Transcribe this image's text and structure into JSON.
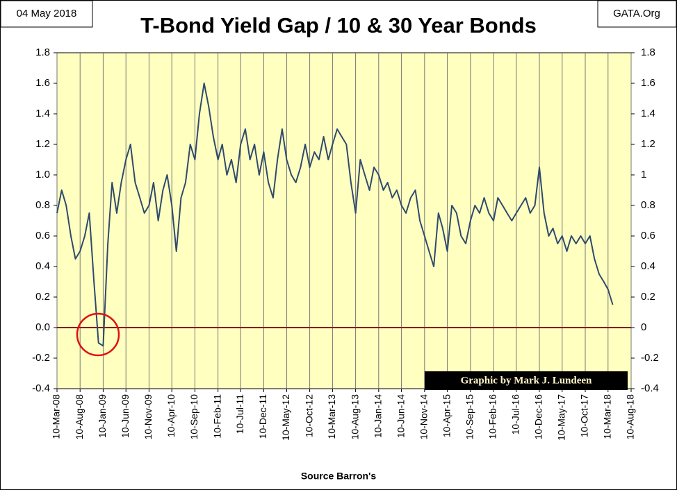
{
  "chart_data": {
    "type": "line",
    "title": "T-Bond Yield Gap / 10 & 30 Year Bonds",
    "date_label": "04 May 2018",
    "source_site": "GATA.Org",
    "credit": "Graphic by Mark J. Lundeen",
    "xlabel": "Source Barron's",
    "x": [
      "2008-03-10",
      "2008-04-10",
      "2008-05-10",
      "2008-06-10",
      "2008-07-10",
      "2008-08-10",
      "2008-09-10",
      "2008-10-10",
      "2008-11-10",
      "2008-12-10",
      "2009-01-10",
      "2009-02-10",
      "2009-03-10",
      "2009-04-10",
      "2009-05-10",
      "2009-06-10",
      "2009-07-10",
      "2009-08-10",
      "2009-09-10",
      "2009-10-10",
      "2009-11-10",
      "2009-12-10",
      "2010-01-10",
      "2010-02-10",
      "2010-03-10",
      "2010-04-10",
      "2010-05-10",
      "2010-06-10",
      "2010-07-10",
      "2010-08-10",
      "2010-09-10",
      "2010-10-10",
      "2010-11-10",
      "2010-12-10",
      "2011-01-10",
      "2011-02-10",
      "2011-03-10",
      "2011-04-10",
      "2011-05-10",
      "2011-06-10",
      "2011-07-10",
      "2011-08-10",
      "2011-09-10",
      "2011-10-10",
      "2011-11-10",
      "2011-12-10",
      "2012-01-10",
      "2012-02-10",
      "2012-03-10",
      "2012-04-10",
      "2012-05-10",
      "2012-06-10",
      "2012-07-10",
      "2012-08-10",
      "2012-09-10",
      "2012-10-10",
      "2012-11-10",
      "2012-12-10",
      "2013-01-10",
      "2013-02-10",
      "2013-03-10",
      "2013-04-10",
      "2013-05-10",
      "2013-06-10",
      "2013-07-10",
      "2013-08-10",
      "2013-09-10",
      "2013-10-10",
      "2013-11-10",
      "2013-12-10",
      "2014-01-10",
      "2014-02-10",
      "2014-03-10",
      "2014-04-10",
      "2014-05-10",
      "2014-06-10",
      "2014-07-10",
      "2014-08-10",
      "2014-09-10",
      "2014-10-10",
      "2014-11-10",
      "2014-12-10",
      "2015-01-10",
      "2015-02-10",
      "2015-03-10",
      "2015-04-10",
      "2015-05-10",
      "2015-06-10",
      "2015-07-10",
      "2015-08-10",
      "2015-09-10",
      "2015-10-10",
      "2015-11-10",
      "2015-12-10",
      "2016-01-10",
      "2016-02-10",
      "2016-03-10",
      "2016-04-10",
      "2016-05-10",
      "2016-06-10",
      "2016-07-10",
      "2016-08-10",
      "2016-09-10",
      "2016-10-10",
      "2016-11-10",
      "2016-12-10",
      "2017-01-10",
      "2017-02-10",
      "2017-03-10",
      "2017-04-10",
      "2017-05-10",
      "2017-06-10",
      "2017-07-10",
      "2017-08-10",
      "2017-09-10",
      "2017-10-10",
      "2017-11-10",
      "2017-12-10",
      "2018-01-10",
      "2018-02-10",
      "2018-03-10",
      "2018-04-10"
    ],
    "series": [
      {
        "name": "Yield Gap",
        "color": "#2e4a6e",
        "values": [
          0.75,
          0.9,
          0.8,
          0.6,
          0.45,
          0.5,
          0.6,
          0.75,
          0.3,
          -0.1,
          -0.12,
          0.55,
          0.95,
          0.75,
          0.95,
          1.1,
          1.2,
          0.95,
          0.85,
          0.75,
          0.8,
          0.95,
          0.7,
          0.9,
          1.0,
          0.8,
          0.5,
          0.85,
          0.95,
          1.2,
          1.1,
          1.4,
          1.6,
          1.45,
          1.25,
          1.1,
          1.2,
          1.0,
          1.1,
          0.95,
          1.2,
          1.3,
          1.1,
          1.2,
          1.0,
          1.15,
          0.95,
          0.85,
          1.1,
          1.3,
          1.1,
          1.0,
          0.95,
          1.05,
          1.2,
          1.05,
          1.15,
          1.1,
          1.25,
          1.1,
          1.2,
          1.3,
          1.25,
          1.2,
          0.95,
          0.75,
          1.1,
          1.0,
          0.9,
          1.05,
          1.0,
          0.9,
          0.95,
          0.85,
          0.9,
          0.8,
          0.75,
          0.85,
          0.9,
          0.7,
          0.6,
          0.5,
          0.4,
          0.75,
          0.65,
          0.5,
          0.8,
          0.75,
          0.6,
          0.55,
          0.7,
          0.8,
          0.75,
          0.85,
          0.75,
          0.7,
          0.85,
          0.8,
          0.75,
          0.7,
          0.75,
          0.8,
          0.85,
          0.75,
          0.8,
          1.05,
          0.75,
          0.6,
          0.65,
          0.55,
          0.6,
          0.5,
          0.6,
          0.55,
          0.6,
          0.55,
          0.6,
          0.45,
          0.35,
          0.3,
          0.25,
          0.15
        ]
      }
    ],
    "xlim": [
      "2008-03-10",
      "2018-08-10"
    ],
    "xticks": [
      {
        "value": "2008-03-10",
        "label": "10-Mar-08"
      },
      {
        "value": "2008-08-10",
        "label": "10-Aug-08"
      },
      {
        "value": "2009-01-10",
        "label": "10-Jan-09"
      },
      {
        "value": "2009-06-10",
        "label": "10-Jun-09"
      },
      {
        "value": "2009-11-10",
        "label": "10-Nov-09"
      },
      {
        "value": "2010-04-10",
        "label": "10-Apr-10"
      },
      {
        "value": "2010-09-10",
        "label": "10-Sep-10"
      },
      {
        "value": "2011-02-10",
        "label": "10-Feb-11"
      },
      {
        "value": "2011-07-10",
        "label": "10-Jul-11"
      },
      {
        "value": "2011-12-10",
        "label": "10-Dec-11"
      },
      {
        "value": "2012-05-10",
        "label": "10-May-12"
      },
      {
        "value": "2012-10-10",
        "label": "10-Oct-12"
      },
      {
        "value": "2013-03-10",
        "label": "10-Mar-13"
      },
      {
        "value": "2013-08-10",
        "label": "10-Aug-13"
      },
      {
        "value": "2014-01-10",
        "label": "10-Jan-14"
      },
      {
        "value": "2014-06-10",
        "label": "10-Jun-14"
      },
      {
        "value": "2014-11-10",
        "label": "10-Nov-14"
      },
      {
        "value": "2015-04-10",
        "label": "10-Apr-15"
      },
      {
        "value": "2015-09-10",
        "label": "10-Sep-15"
      },
      {
        "value": "2016-02-10",
        "label": "10-Feb-16"
      },
      {
        "value": "2016-07-10",
        "label": "10-Jul-16"
      },
      {
        "value": "2016-12-10",
        "label": "10-Dec-16"
      },
      {
        "value": "2017-05-10",
        "label": "10-May-17"
      },
      {
        "value": "2017-10-10",
        "label": "10-Oct-17"
      },
      {
        "value": "2018-03-10",
        "label": "10-Mar-18"
      },
      {
        "value": "2018-08-10",
        "label": "10-Aug-18"
      }
    ],
    "ylim": [
      -0.4,
      1.8
    ],
    "yticks": [
      -0.4,
      -0.2,
      {
        "value": 0,
        "label": "0.0"
      },
      0.2,
      0.4,
      0.6,
      0.8,
      {
        "value": 1,
        "label": "1.0"
      },
      1.2,
      1.4,
      1.6,
      1.8
    ],
    "y2lim": [
      -0.4,
      1.8
    ],
    "y2ticks": [
      -0.4,
      -0.2,
      0,
      0.2,
      0.4,
      0.6,
      0.8,
      1,
      1.2,
      1.4,
      1.6,
      1.8
    ],
    "grid": "x",
    "zero_line_color": "#8b1a1a",
    "background": "#ffffc0"
  }
}
